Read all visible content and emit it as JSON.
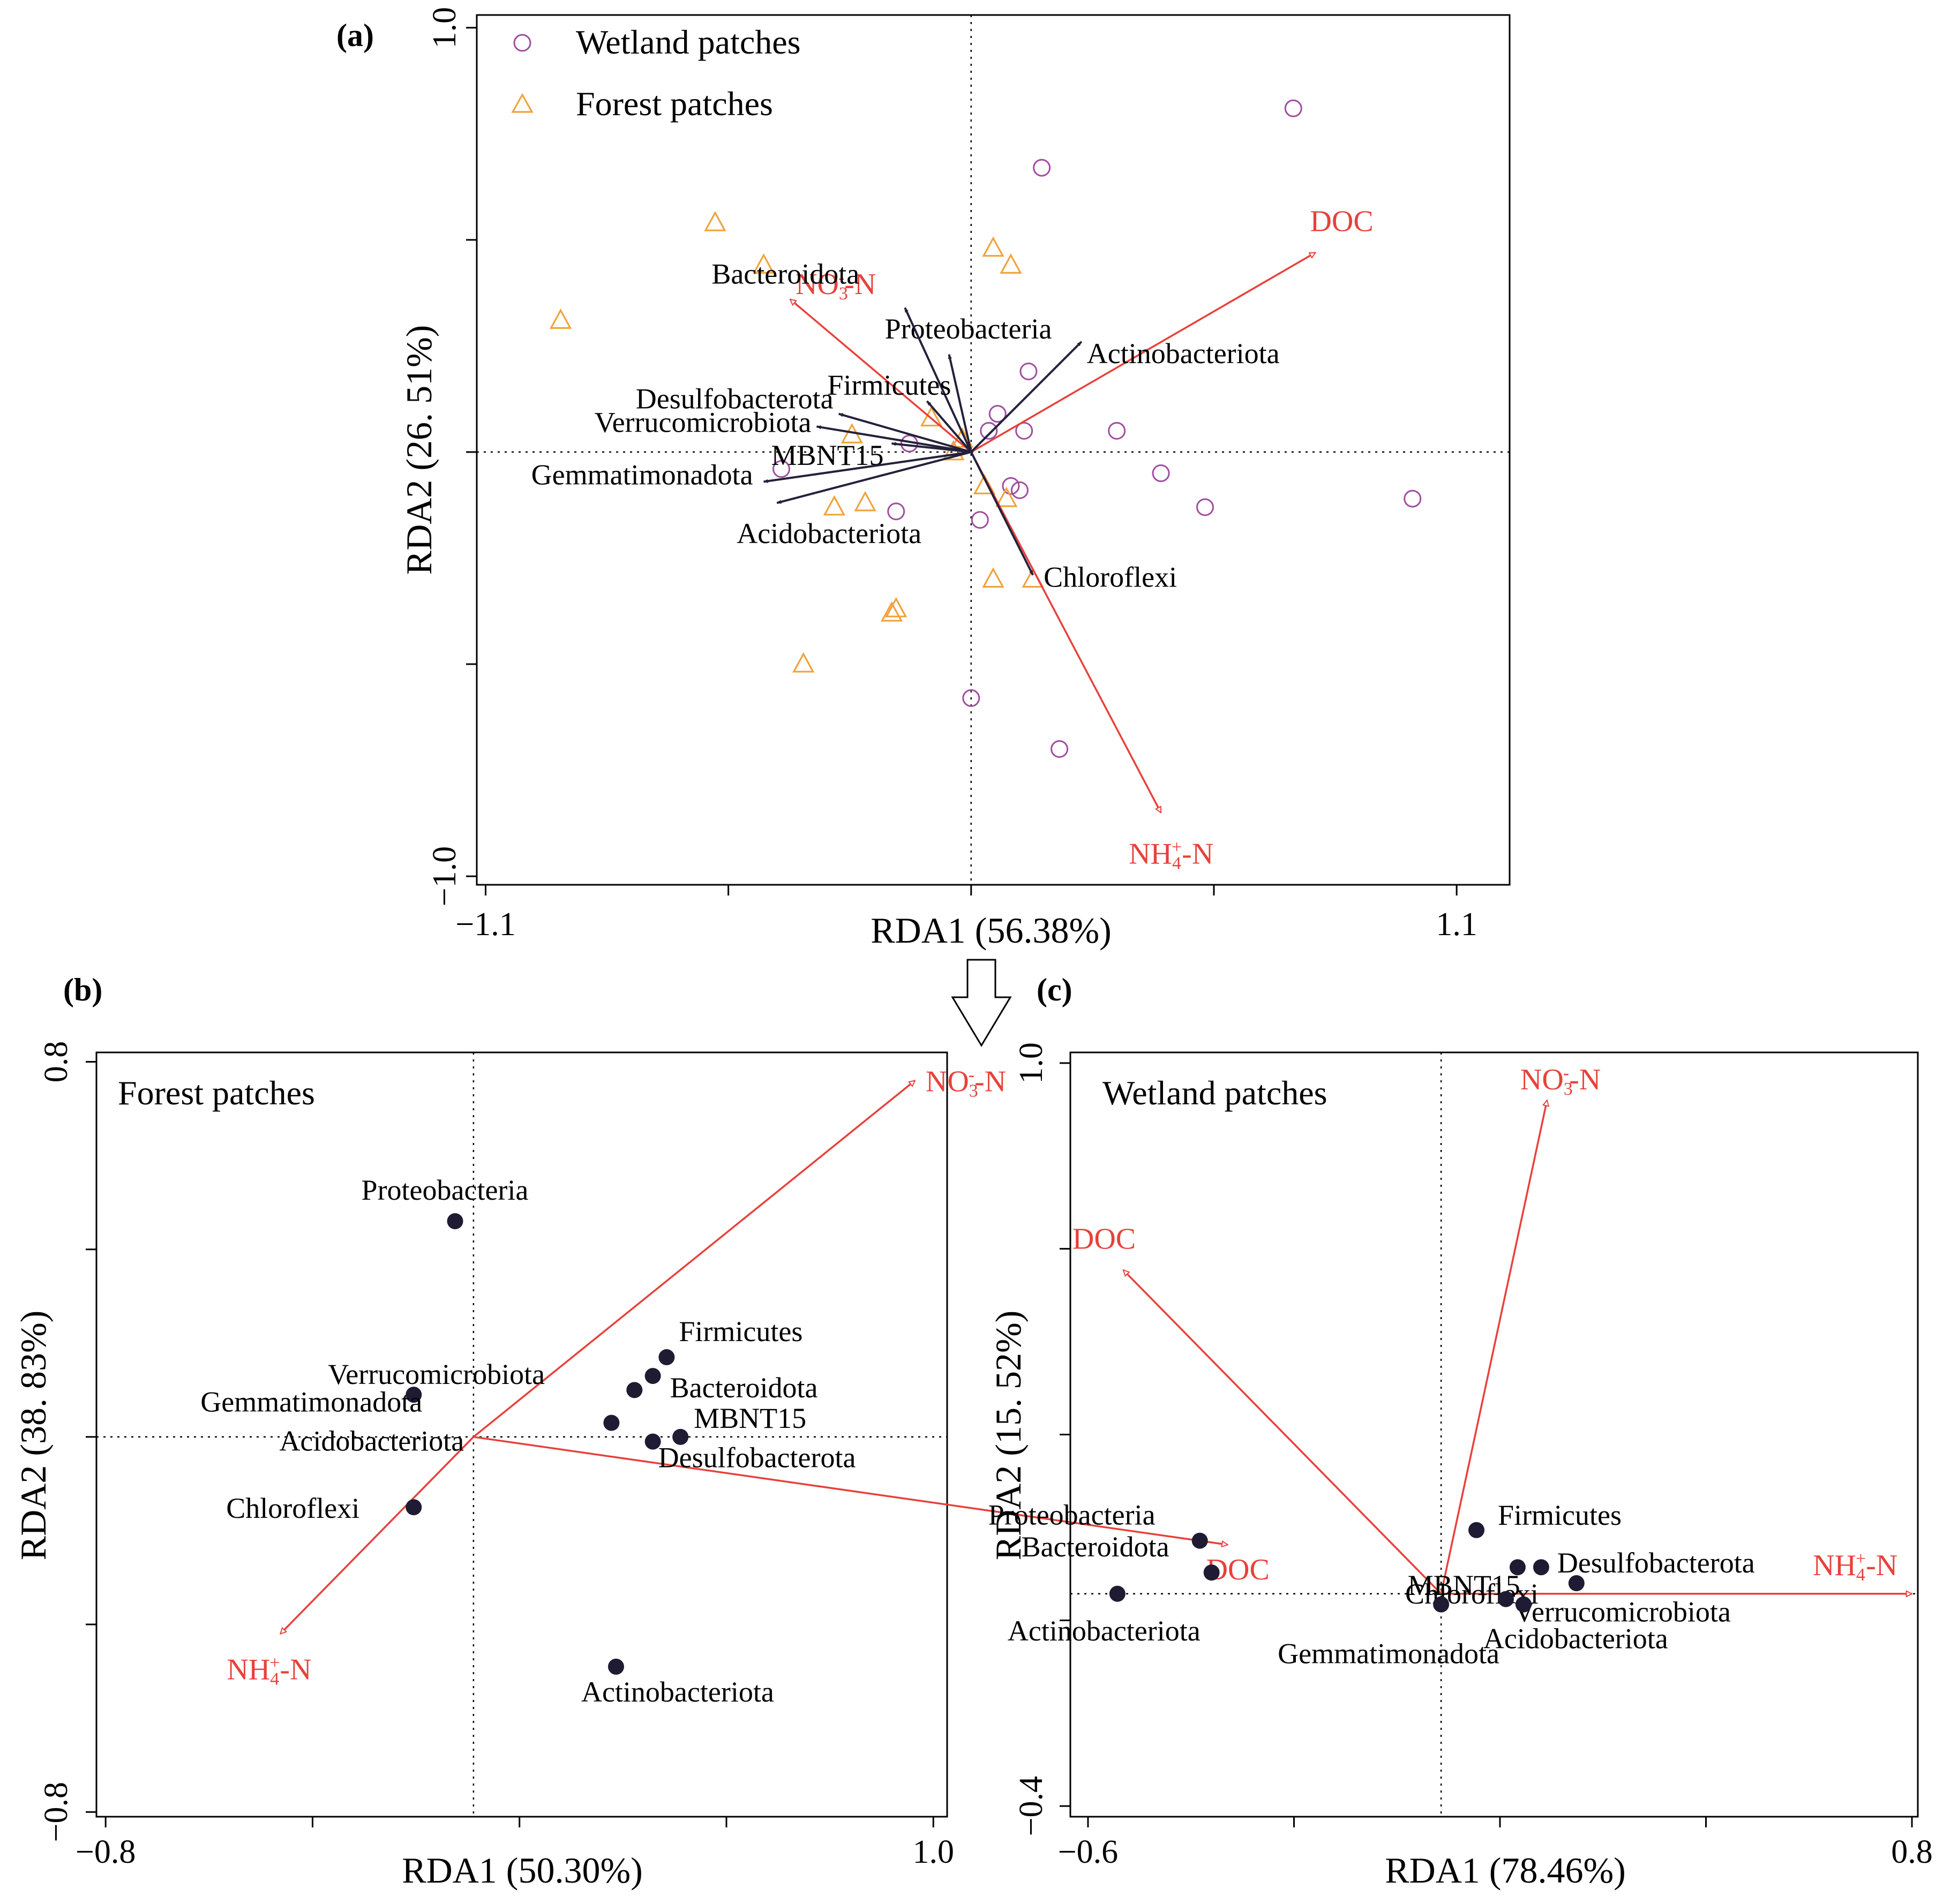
{
  "chart_data": [
    {
      "type": "scatter",
      "panel_label": "(a)",
      "xlabel": "RDA1 (56.38%)",
      "ylabel": "RDA2 (26. 51%)",
      "xlim": [
        -1.12,
        1.22
      ],
      "ylim": [
        -1.02,
        1.03
      ],
      "xticks": [
        -1.1,
        1.1
      ],
      "xtick_labels": [
        "−1.1",
        "1.1"
      ],
      "yticks": [
        -1.0,
        1.0
      ],
      "ytick_labels": [
        "−1.0",
        "1.0"
      ],
      "legend": {
        "position": "top-left",
        "entries": [
          {
            "name": "Wetland patches",
            "marker": "circle"
          },
          {
            "name": "Forest patches",
            "marker": "triangle"
          }
        ]
      },
      "sites": [
        {
          "group": "Wetland patches",
          "points": [
            [
              0.73,
              0.81
            ],
            [
              0.16,
              0.67
            ],
            [
              0.13,
              0.19
            ],
            [
              0.33,
              0.05
            ],
            [
              0.06,
              0.09
            ],
            [
              0.12,
              0.05
            ],
            [
              0.04,
              0.05
            ],
            [
              -0.14,
              0.02
            ],
            [
              -0.43,
              -0.04
            ],
            [
              -0.17,
              -0.14
            ],
            [
              0.09,
              -0.08
            ],
            [
              0.11,
              -0.09
            ],
            [
              0.02,
              -0.16
            ],
            [
              0.43,
              -0.05
            ],
            [
              0.53,
              -0.13
            ],
            [
              1.0,
              -0.11
            ],
            [
              0.0,
              -0.58
            ],
            [
              0.2,
              -0.7
            ]
          ]
        },
        {
          "group": "Forest patches",
          "points": [
            [
              -0.58,
              0.54
            ],
            [
              -0.47,
              0.44
            ],
            [
              -0.93,
              0.31
            ],
            [
              0.05,
              0.48
            ],
            [
              0.09,
              0.44
            ],
            [
              -0.27,
              0.04
            ],
            [
              -0.09,
              0.08
            ],
            [
              -0.02,
              0.03
            ],
            [
              -0.04,
              0.0
            ],
            [
              0.03,
              -0.08
            ],
            [
              0.08,
              -0.11
            ],
            [
              -0.31,
              -0.13
            ],
            [
              -0.24,
              -0.12
            ],
            [
              0.05,
              -0.3
            ],
            [
              0.14,
              -0.3
            ],
            [
              -0.17,
              -0.37
            ],
            [
              -0.18,
              -0.38
            ],
            [
              -0.38,
              -0.5
            ]
          ]
        }
      ],
      "species_arrows": [
        {
          "name": "Proteobacteria",
          "x": -0.05,
          "y": 0.23,
          "label": "Proteobacteria"
        },
        {
          "name": "Bacteroidota",
          "x": -0.15,
          "y": 0.34,
          "label": "Bacteroidota"
        },
        {
          "name": "Actinobacteriota",
          "x": 0.25,
          "y": 0.26,
          "label": "Actinobacteriota"
        },
        {
          "name": "Firmicutes",
          "x": -0.1,
          "y": 0.12,
          "label": "Firmicutes"
        },
        {
          "name": "Desulfobacterota",
          "x": -0.3,
          "y": 0.09,
          "label": "Desulfobacterota"
        },
        {
          "name": "Verrucomicrobiota",
          "x": -0.35,
          "y": 0.06,
          "label": "Verrucomicrobiota"
        },
        {
          "name": "MBNT15",
          "x": -0.18,
          "y": 0.02,
          "label": "MBNT15"
        },
        {
          "name": "Gemmatimonadota",
          "x": -0.47,
          "y": -0.07,
          "label": "Gemmatimonadota"
        },
        {
          "name": "Acidobacteriota",
          "x": -0.44,
          "y": -0.12,
          "label": "Acidobacteriota"
        },
        {
          "name": "Chloroflexi",
          "x": 0.14,
          "y": -0.29,
          "label": "Chloroflexi"
        }
      ],
      "env_arrows": [
        {
          "name": "DOC",
          "x": 0.78,
          "y": 0.47,
          "label": "DOC",
          "sub": "",
          "sup": "",
          "suffix": ""
        },
        {
          "name": "NO3-N",
          "x": -0.41,
          "y": 0.36,
          "label": "NO",
          "sub": "3",
          "sup": "-",
          "suffix": "-N"
        },
        {
          "name": "NH4-N",
          "x": 0.43,
          "y": -0.85,
          "label": "NH",
          "sub": "4",
          "sup": "+",
          "suffix": "-N"
        }
      ]
    },
    {
      "type": "scatter",
      "panel_label": "(b)",
      "title": "Forest patches",
      "xlabel": "RDA1 (50.30%)",
      "ylabel": "RDA2 (38. 83%)",
      "xlim": [
        -0.82,
        1.03
      ],
      "ylim": [
        -0.81,
        0.82
      ],
      "xticks": [
        -0.8,
        1.0
      ],
      "xtick_labels": [
        "−0.8",
        "1.0"
      ],
      "yticks": [
        -0.8,
        0.8
      ],
      "ytick_labels": [
        "−0.8",
        "0.8"
      ],
      "species": [
        {
          "name": "Proteobacteria",
          "x": -0.04,
          "y": 0.46,
          "label": "Proteobacteria"
        },
        {
          "name": "Firmicutes",
          "x": 0.42,
          "y": 0.17,
          "label": "Firmicutes"
        },
        {
          "name": "Bacteroidota",
          "x": 0.39,
          "y": 0.13,
          "label": "Bacteroidota"
        },
        {
          "name": "Verrucomicrobiota",
          "x": -0.13,
          "y": 0.09,
          "label": "Verrucomicrobiota"
        },
        {
          "name": "Gemmatimonadota",
          "x": 0.35,
          "y": 0.1,
          "label": "Gemmatimonadota"
        },
        {
          "name": "Acidobacteriota",
          "x": 0.3,
          "y": 0.03,
          "label": "Acidobacteriota"
        },
        {
          "name": "MBNT15",
          "x": 0.45,
          "y": 0.0,
          "label": "MBNT15"
        },
        {
          "name": "Desulfobacterota",
          "x": 0.39,
          "y": -0.01,
          "label": "Desulfobacterota"
        },
        {
          "name": "Chloroflexi",
          "x": -0.13,
          "y": -0.15,
          "label": "Chloroflexi"
        },
        {
          "name": "Actinobacteriota",
          "x": 0.31,
          "y": -0.49,
          "label": "Actinobacteriota"
        }
      ],
      "env_arrows": [
        {
          "name": "NO3-N",
          "x": 0.96,
          "y": 0.76,
          "label": "NO",
          "sub": "3",
          "sup": "-",
          "suffix": "-N"
        },
        {
          "name": "DOC",
          "x": 1.64,
          "y": -0.23,
          "label": "DOC",
          "sub": "",
          "sup": "",
          "suffix": ""
        },
        {
          "name": "NH4-N",
          "x": -0.42,
          "y": -0.42,
          "label": "NH",
          "sub": "4",
          "sup": "+",
          "suffix": "-N"
        }
      ]
    },
    {
      "type": "scatter",
      "panel_label": "(c)",
      "title": "Wetland patches",
      "xlabel": "RDA1 (78.46%)",
      "ylabel": "RDA2 (15. 52%)",
      "xlim": [
        -0.63,
        0.81
      ],
      "ylim": [
        -0.42,
        1.02
      ],
      "xticks": [
        -0.6,
        0.8
      ],
      "xtick_labels": [
        "−0.6",
        "0.8"
      ],
      "yticks": [
        -0.4,
        1.0
      ],
      "ytick_labels": [
        "−0.4",
        "1.0"
      ],
      "species": [
        {
          "name": "Proteobacteria",
          "x": -0.41,
          "y": 0.1,
          "label": "Proteobacteria"
        },
        {
          "name": "Bacteroidota",
          "x": -0.39,
          "y": 0.04,
          "label": "Bacteroidota"
        },
        {
          "name": "Actinobacteriota",
          "x": -0.55,
          "y": 0.0,
          "label": "Actinobacteriota"
        },
        {
          "name": "Firmicutes",
          "x": 0.06,
          "y": 0.12,
          "label": "Firmicutes"
        },
        {
          "name": "Chloroflexi",
          "x": 0.13,
          "y": 0.05,
          "label": "Chloroflexi"
        },
        {
          "name": "Desulfobacterota",
          "x": 0.17,
          "y": 0.05,
          "label": "Desulfobacterota"
        },
        {
          "name": "MBNT15",
          "x": 0.23,
          "y": 0.02,
          "label": "MBNT15"
        },
        {
          "name": "Verrucomicrobiota",
          "x": 0.11,
          "y": -0.01,
          "label": "Verrucomicrobiota"
        },
        {
          "name": "Acidobacteriota",
          "x": 0.14,
          "y": -0.02,
          "label": "Acidobacteriota"
        },
        {
          "name": "Gemmatimonadota",
          "x": 0.0,
          "y": -0.02,
          "label": "Gemmatimonadota"
        }
      ],
      "env_arrows": [
        {
          "name": "NO3-N",
          "x": 0.18,
          "y": 0.93,
          "label": "NO",
          "sub": "3",
          "sup": "-",
          "suffix": "-N"
        },
        {
          "name": "DOC",
          "x": -0.54,
          "y": 0.61,
          "label": "DOC",
          "sub": "",
          "sup": "",
          "suffix": ""
        },
        {
          "name": "NH4-N",
          "x": 0.8,
          "y": 0.0,
          "label": "NH",
          "sub": "4",
          "sup": "+",
          "suffix": "-N"
        }
      ]
    }
  ]
}
